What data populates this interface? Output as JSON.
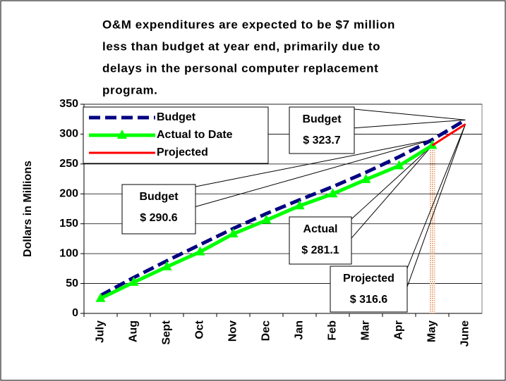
{
  "chart_data": {
    "type": "line",
    "title": [
      "O&M expenditures are expected to be $7 million",
      "less than budget at year end, primarily due to",
      "delays in the personal computer replacement",
      "program."
    ],
    "y_label": "Dollars in Millions",
    "categories": [
      "July",
      "Aug",
      "Sept",
      "Oct",
      "Nov",
      "Dec",
      "Jan",
      "Feb",
      "Mar",
      "Apr",
      "May",
      "June"
    ],
    "series": [
      {
        "name": "Budget",
        "color": "#000080",
        "values": [
          30,
          60,
          88,
          115,
          142,
          167,
          190,
          212,
          236,
          262,
          290.6,
          323.7
        ]
      },
      {
        "name": "Actual to Date",
        "color": "#00ff00",
        "values": [
          25,
          52,
          78,
          103,
          133,
          156,
          180,
          200,
          224,
          247,
          281.1,
          null
        ]
      },
      {
        "name": "Projected",
        "color": "#ff0000",
        "values": [
          null,
          null,
          null,
          null,
          null,
          null,
          null,
          null,
          null,
          null,
          281.1,
          316.6
        ]
      }
    ],
    "ylim": [
      0,
      350
    ],
    "yticks": [
      0,
      50,
      100,
      150,
      200,
      250,
      300,
      350
    ],
    "grid": true,
    "legend": "upper left",
    "annotations": [
      {
        "lines": [
          "Budget",
          "$ 323.7"
        ]
      },
      {
        "lines": [
          "Budget",
          "$ 290.6"
        ]
      },
      {
        "lines": [
          "Actual",
          "$ 281.1"
        ]
      },
      {
        "lines": [
          "Projected",
          "$ 316.6"
        ]
      }
    ]
  }
}
